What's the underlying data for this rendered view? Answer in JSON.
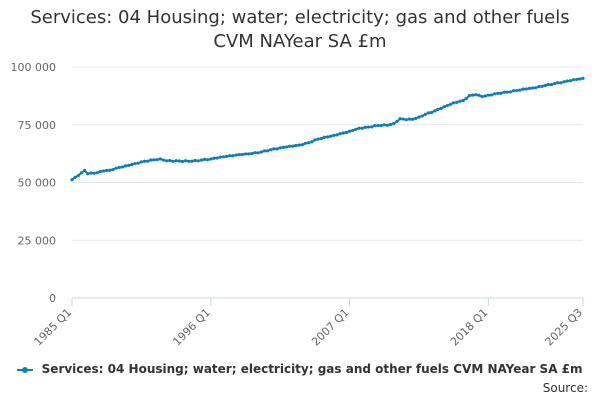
{
  "chart_data": {
    "type": "line",
    "title_lines": [
      "Services: 04 Housing; water; electricity; gas and other fuels",
      "CVM NAYear SA £m"
    ],
    "xlabel": "",
    "ylabel": "",
    "ylim": [
      0,
      100000
    ],
    "yticks": [
      0,
      25000,
      50000,
      75000,
      100000
    ],
    "ytick_labels": [
      "0",
      "25 000",
      "50 000",
      "75 000",
      "100 000"
    ],
    "xticks": [
      {
        "index": 0,
        "label": "1985 Q1"
      },
      {
        "index": 44,
        "label": "1996 Q1"
      },
      {
        "index": 88,
        "label": "2007 Q1"
      },
      {
        "index": 132,
        "label": "2018 Q1"
      },
      {
        "index": 162,
        "label": "2025 Q3"
      }
    ],
    "grid": true,
    "series": [
      {
        "name": "Services: 04 Housing; water; electricity; gas and other fuels CVM NAYear SA £m",
        "color": "#0f7eb4",
        "anchors": [
          [
            0,
            51200
          ],
          [
            2,
            53000
          ],
          [
            4,
            55200
          ],
          [
            5,
            53800
          ],
          [
            8,
            54200
          ],
          [
            10,
            55000
          ],
          [
            12,
            55300
          ],
          [
            14,
            56200
          ],
          [
            17,
            57200
          ],
          [
            20,
            58200
          ],
          [
            23,
            59200
          ],
          [
            26,
            59800
          ],
          [
            28,
            60200
          ],
          [
            30,
            59400
          ],
          [
            34,
            59300
          ],
          [
            38,
            59200
          ],
          [
            41,
            59700
          ],
          [
            44,
            60200
          ],
          [
            47,
            61000
          ],
          [
            50,
            61600
          ],
          [
            54,
            62100
          ],
          [
            57,
            62500
          ],
          [
            60,
            63200
          ],
          [
            63,
            64200
          ],
          [
            66,
            65000
          ],
          [
            69,
            65700
          ],
          [
            72,
            66200
          ],
          [
            75,
            67200
          ],
          [
            78,
            68800
          ],
          [
            81,
            69700
          ],
          [
            84,
            70600
          ],
          [
            88,
            72200
          ],
          [
            91,
            73500
          ],
          [
            94,
            74000
          ],
          [
            97,
            74700
          ],
          [
            100,
            74800
          ],
          [
            102,
            75500
          ],
          [
            104,
            77600
          ],
          [
            106,
            77200
          ],
          [
            108,
            77400
          ],
          [
            110,
            78300
          ],
          [
            112,
            79500
          ],
          [
            115,
            81000
          ],
          [
            118,
            82800
          ],
          [
            121,
            84500
          ],
          [
            124,
            85500
          ],
          [
            126,
            87600
          ],
          [
            128,
            88000
          ],
          [
            130,
            87200
          ],
          [
            132,
            87800
          ],
          [
            135,
            88600
          ],
          [
            138,
            89100
          ],
          [
            141,
            89800
          ],
          [
            144,
            90500
          ],
          [
            147,
            91000
          ],
          [
            150,
            92000
          ],
          [
            153,
            92800
          ],
          [
            156,
            93600
          ],
          [
            159,
            94500
          ],
          [
            162,
            95100
          ]
        ]
      }
    ],
    "legend_position": "bottom",
    "source_label": "Source:"
  }
}
